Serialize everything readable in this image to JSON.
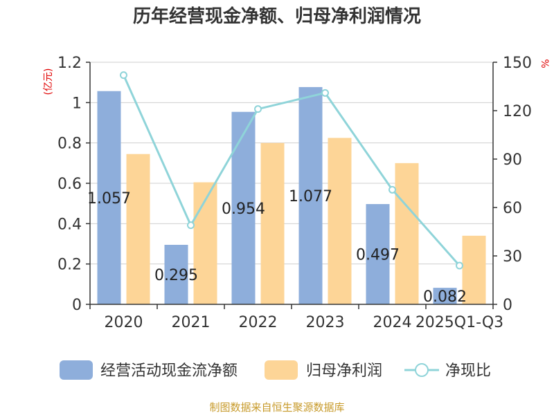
{
  "chart_data": {
    "type": "bar",
    "title": "历年经营现金净额、归母净利润情况",
    "categories": [
      "2020",
      "2021",
      "2022",
      "2023",
      "2024",
      "2025Q1-Q3"
    ],
    "series": [
      {
        "name": "经营活动现金流净额",
        "kind": "bar",
        "axis": "left",
        "color": "#8eaedb",
        "values": [
          1.057,
          0.295,
          0.954,
          1.077,
          0.497,
          0.082
        ],
        "labels": [
          "1.057",
          "0.295",
          "0.954",
          "1.077",
          "0.497",
          "0.082"
        ]
      },
      {
        "name": "归母净利润",
        "kind": "bar",
        "axis": "left",
        "color": "#fdd597",
        "values": [
          0.745,
          0.605,
          0.8,
          0.825,
          0.7,
          0.34
        ]
      },
      {
        "name": "净现比",
        "kind": "line",
        "axis": "right",
        "color": "#8fd4d9",
        "values": [
          142,
          49,
          121,
          131,
          71,
          24
        ]
      }
    ],
    "y_left": {
      "unit": "(亿元)",
      "ylim": [
        0,
        1.2
      ],
      "ticks": [
        "0",
        "0.2",
        "0.4",
        "0.6",
        "0.8",
        "1",
        "1.2"
      ]
    },
    "y_right": {
      "unit": "%",
      "ylim": [
        0,
        150
      ],
      "ticks": [
        "0",
        "30",
        "60",
        "90",
        "120",
        "150"
      ]
    },
    "grid": true,
    "legend_position": "bottom"
  },
  "source": "制图数据来自恒生聚源数据库"
}
